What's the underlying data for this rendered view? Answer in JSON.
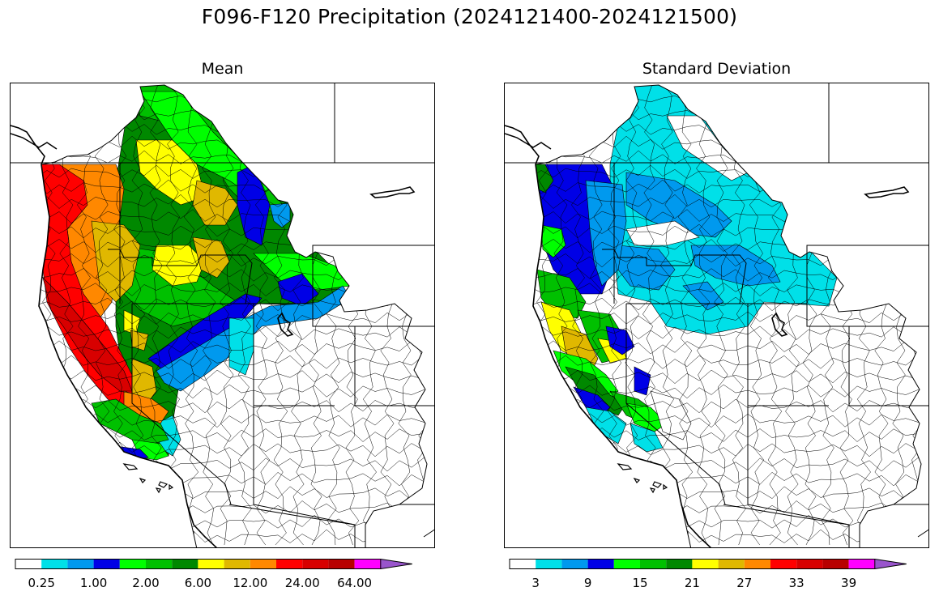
{
  "figure": {
    "title": "F096-F120 Precipitation (2024121400-2024121500)"
  },
  "palette": [
    "#ffffff",
    "#00e0e8",
    "#0099ee",
    "#0000e6",
    "#00ff00",
    "#00c000",
    "#008800",
    "#ffff00",
    "#e0b800",
    "#ff8800",
    "#ff0000",
    "#d80000",
    "#b80000",
    "#ff00ff",
    "#9955cc"
  ],
  "panels": [
    {
      "title": "Mean",
      "colorbar": {
        "tick_labels": [
          "0.25",
          "1.00",
          "2.00",
          "6.00",
          "12.00",
          "24.00",
          "64.00"
        ],
        "extend": "max"
      }
    },
    {
      "title": "Standard Deviation",
      "colorbar": {
        "tick_labels": [
          "3",
          "9",
          "15",
          "21",
          "27",
          "33",
          "39"
        ],
        "extend": "max"
      }
    }
  ]
}
